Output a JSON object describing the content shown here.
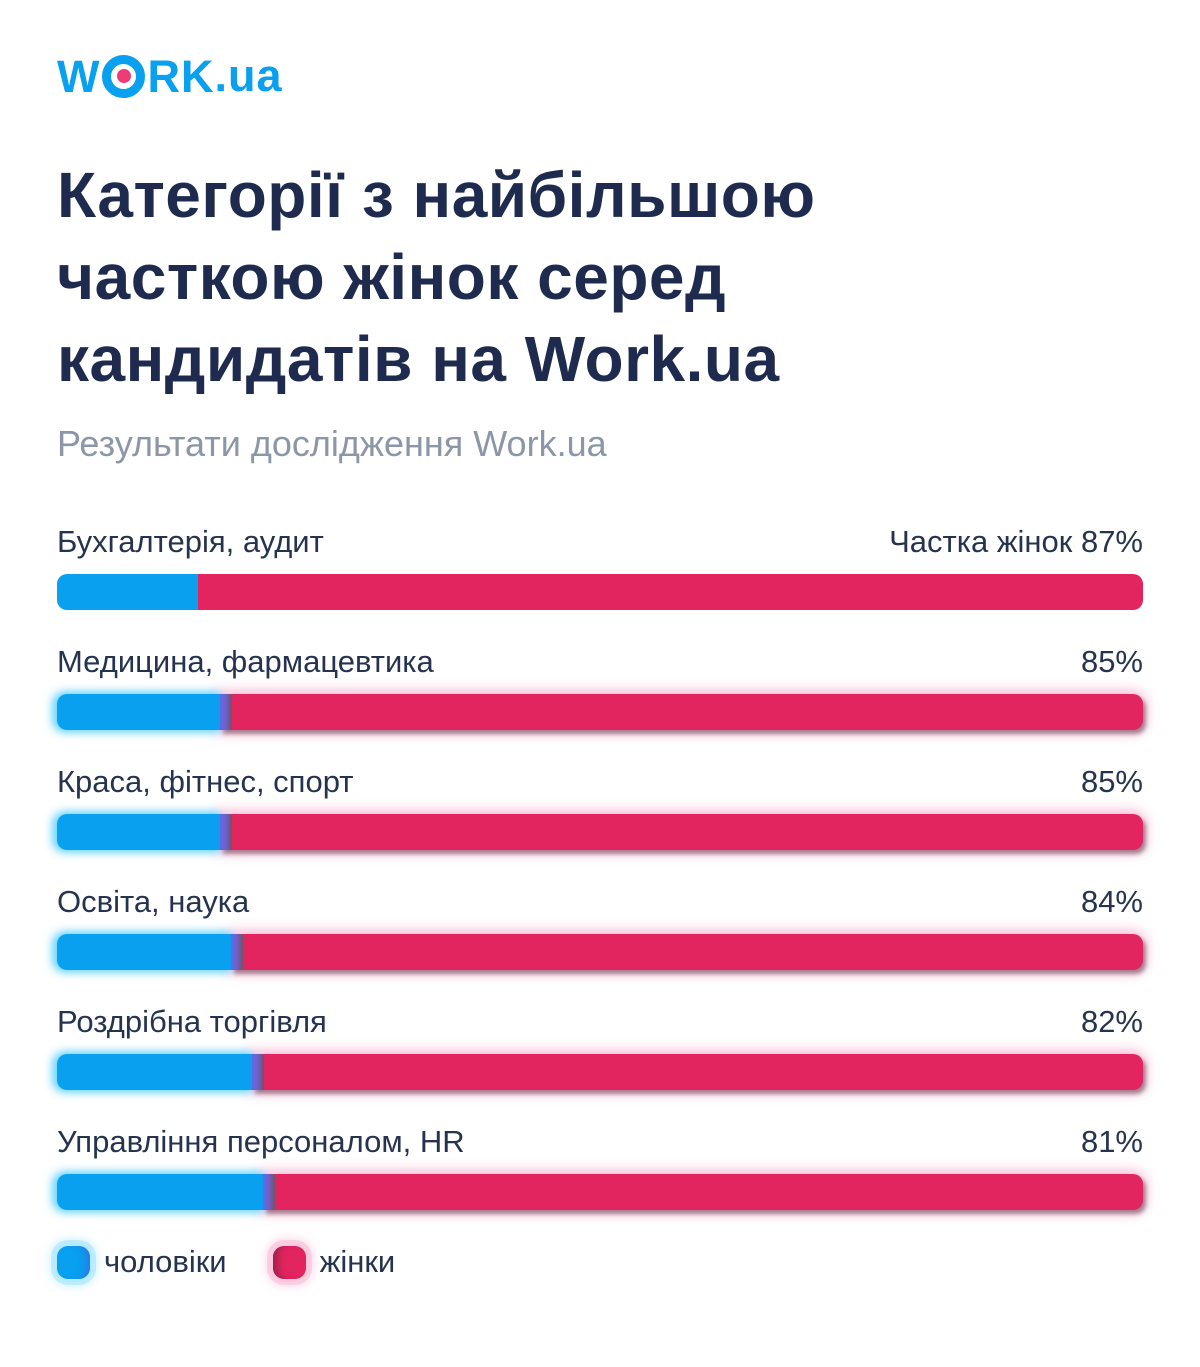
{
  "logo": {
    "part1": "W",
    "part2": "RK",
    "suffix": ".ua"
  },
  "header": {
    "title_lines": [
      "Категорії з найбільшою",
      "часткою жінок серед",
      "кандидатів на Work.ua"
    ],
    "subtitle": "Результати дослідження Work.ua"
  },
  "colors": {
    "brand_blue": "#09a0f0",
    "brand_pink_dot": "#ee3d76",
    "women_pink": "#e2245f",
    "title_navy": "#1e2b4e",
    "subtitle_gray": "#8c96a7",
    "label_navy": "#26334f"
  },
  "chart_data": {
    "type": "bar",
    "orientation": "horizontal",
    "stacked": true,
    "unit": "%",
    "xlim": [
      0,
      100
    ],
    "grid": false,
    "legend_position": "bottom",
    "title": "Категорії з найбільшою часткою жінок серед кандидатів на Work.ua",
    "subtitle": "Результати дослідження Work.ua",
    "categories": [
      "Бухгалтерія, аудит",
      "Медицина, фармацевтика",
      "Краса, фітнес, спорт",
      "Освіта, наука",
      "Роздрібна торгівля",
      "Управління персоналом, HR"
    ],
    "series": [
      {
        "name": "чоловіки",
        "color": "#09a0f0",
        "values": [
          13,
          15,
          15,
          16,
          18,
          19
        ]
      },
      {
        "name": "жінки",
        "color": "#e2245f",
        "values": [
          87,
          85,
          85,
          84,
          82,
          81
        ]
      }
    ],
    "bar_value_labels": [
      "Частка жінок 87%",
      "85%",
      "85%",
      "84%",
      "82%",
      "81%"
    ]
  }
}
